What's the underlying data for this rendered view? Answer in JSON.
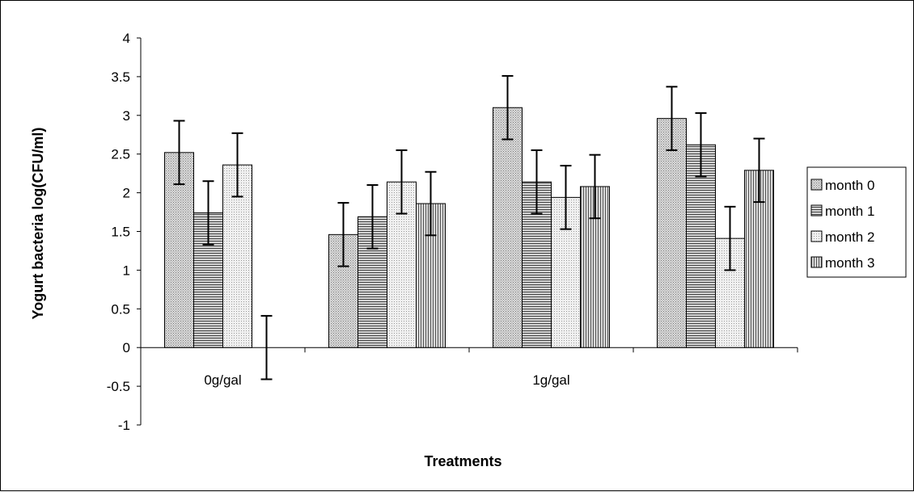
{
  "chart_data": {
    "type": "bar",
    "title": "",
    "xlabel": "Treatments",
    "ylabel": "Yogurt bacteria log(CFU/ml)",
    "ylim": [
      -1,
      4
    ],
    "yticks": [
      -1,
      -0.5,
      0,
      0.5,
      1,
      1.5,
      2,
      2.5,
      3,
      3.5,
      4
    ],
    "ytick_labels": [
      "-1",
      "-0.5",
      "0",
      "0.5",
      "1",
      "1.5",
      "2",
      "2.5",
      "3",
      "3.5",
      "4"
    ],
    "categories": [
      "0g/gal",
      "",
      "1g/gal",
      ""
    ],
    "series": [
      {
        "name": "month 0",
        "values": [
          2.52,
          1.46,
          3.1,
          2.96
        ],
        "errors": [
          0.41,
          0.41,
          0.41,
          0.41
        ],
        "pattern": "dots-dense",
        "fill": "#c8c8c8"
      },
      {
        "name": "month 1",
        "values": [
          1.74,
          1.69,
          2.14,
          2.62
        ],
        "errors": [
          0.41,
          0.41,
          0.41,
          0.41
        ],
        "pattern": "horizontal-lines",
        "fill": "#a8a8a8"
      },
      {
        "name": "month 2",
        "values": [
          2.36,
          2.14,
          1.94,
          1.41
        ],
        "errors": [
          0.41,
          0.41,
          0.41,
          0.41
        ],
        "pattern": "dots-light",
        "fill": "#e4e4e4"
      },
      {
        "name": "month 3",
        "values": [
          0.0,
          1.86,
          2.08,
          2.29
        ],
        "errors": [
          0.41,
          0.41,
          0.41,
          0.41
        ],
        "pattern": "vertical-lines",
        "fill": "#b4b4b4"
      }
    ],
    "grid": false,
    "legend_position": "right",
    "error_bars": true
  }
}
